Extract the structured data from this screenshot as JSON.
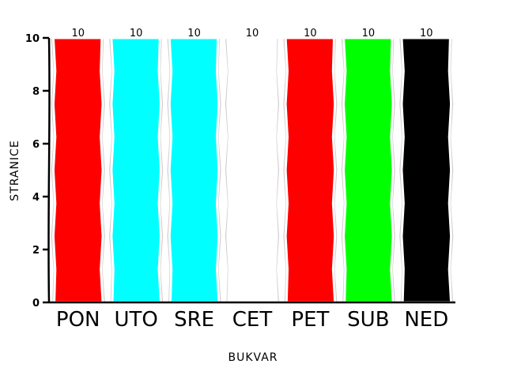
{
  "chart_data": {
    "type": "bar",
    "title": "",
    "xlabel": "BUKVAR",
    "ylabel": "STRANICE",
    "categories": [
      "PON",
      "UTO",
      "SRE",
      "CET",
      "PET",
      "SUB",
      "NED"
    ],
    "values": [
      10,
      10,
      10,
      10,
      10,
      10,
      10
    ],
    "data_labels": [
      "10",
      "10",
      "10",
      "10",
      "10",
      "10",
      "10"
    ],
    "bar_colors": [
      "#ff0000",
      "#00ffff",
      "#00ffff",
      "#ffffff",
      "#ff0000",
      "#00ff00",
      "#000000"
    ],
    "background_stripe_color": "#d3cccc",
    "ylim": [
      0,
      10
    ],
    "yticks": [
      0,
      2,
      4,
      6,
      8,
      10
    ],
    "grid": false,
    "legend": "none",
    "style": "xkcd"
  }
}
